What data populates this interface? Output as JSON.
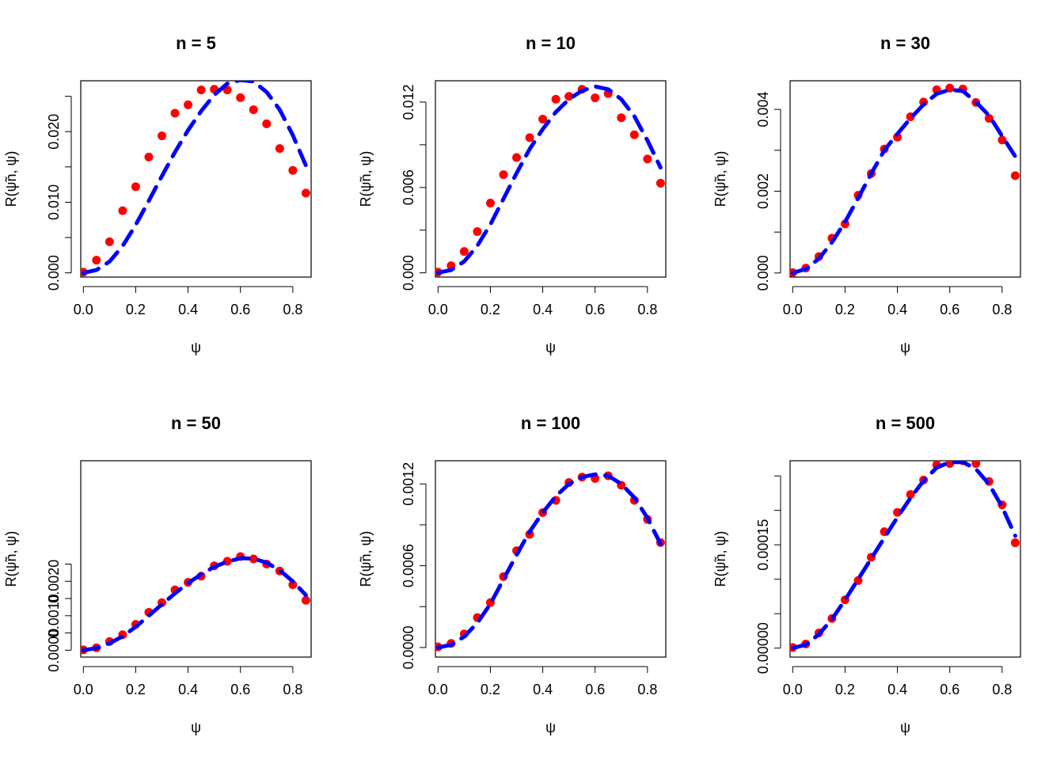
{
  "chart_data": [
    {
      "type": "scatter",
      "title": "n =  5",
      "xlabel": "ψ",
      "ylabel": "R(ψ̃n, ψ)",
      "xlim": [
        -0.01,
        0.87
      ],
      "ylim": [
        -0.0006,
        0.0272
      ],
      "xticks": [
        "0.0",
        "0.2",
        "0.4",
        "0.6",
        "0.8"
      ],
      "xtick_values": [
        0,
        0.2,
        0.4,
        0.6,
        0.8
      ],
      "yticks": [
        "0.000",
        "0.010",
        "0.020"
      ],
      "ytick_values": [
        0,
        0.005,
        0.01,
        0.015,
        0.02,
        0.025
      ],
      "ytick_labeled": [
        true,
        false,
        true,
        false,
        true,
        false
      ],
      "series": [
        {
          "style": "points",
          "color": "#ff0000",
          "x": [
            0,
            0.05,
            0.1,
            0.15,
            0.2,
            0.25,
            0.3,
            0.35,
            0.4,
            0.45,
            0.5,
            0.55,
            0.6,
            0.65,
            0.7,
            0.75,
            0.8,
            0.85
          ],
          "y": [
            0.0001,
            0.0018,
            0.0044,
            0.0088,
            0.0122,
            0.0164,
            0.0194,
            0.0226,
            0.0238,
            0.0259,
            0.026,
            0.0259,
            0.0248,
            0.0231,
            0.0211,
            0.0176,
            0.0145,
            0.0113
          ]
        },
        {
          "style": "dashed",
          "color": "#0000ff",
          "x": [
            0,
            0.05,
            0.1,
            0.15,
            0.2,
            0.25,
            0.3,
            0.35,
            0.4,
            0.45,
            0.5,
            0.55,
            0.6,
            0.65,
            0.7,
            0.75,
            0.8,
            0.85
          ],
          "y": [
            0,
            0.0004,
            0.0016,
            0.0038,
            0.0068,
            0.0102,
            0.0137,
            0.0171,
            0.0202,
            0.0229,
            0.0252,
            0.0268,
            0.0273,
            0.0271,
            0.0256,
            0.0231,
            0.0195,
            0.0152
          ]
        }
      ]
    },
    {
      "type": "scatter",
      "title": "n =  10",
      "xlabel": "ψ",
      "ylabel": "R(ψ̃n, ψ)",
      "xlim": [
        -0.01,
        0.87
      ],
      "ylim": [
        -0.0003,
        0.0135
      ],
      "xticks": [
        "0.0",
        "0.2",
        "0.4",
        "0.6",
        "0.8"
      ],
      "xtick_values": [
        0,
        0.2,
        0.4,
        0.6,
        0.8
      ],
      "yticks": [
        "0.000",
        "0.006",
        "0.012"
      ],
      "ytick_values": [
        0,
        0.003,
        0.006,
        0.009,
        0.012
      ],
      "ytick_labeled": [
        true,
        false,
        true,
        false,
        true
      ],
      "series": [
        {
          "style": "points",
          "color": "#ff0000",
          "x": [
            0,
            0.05,
            0.1,
            0.15,
            0.2,
            0.25,
            0.3,
            0.35,
            0.4,
            0.45,
            0.5,
            0.55,
            0.6,
            0.65,
            0.7,
            0.75,
            0.8,
            0.85
          ],
          "y": [
            5e-05,
            0.0005,
            0.0015,
            0.0029,
            0.0049,
            0.0069,
            0.0081,
            0.0095,
            0.0108,
            0.0122,
            0.0124,
            0.0129,
            0.0123,
            0.0126,
            0.0109,
            0.0097,
            0.008,
            0.0063
          ]
        },
        {
          "style": "dashed",
          "color": "#0000ff",
          "x": [
            0,
            0.05,
            0.1,
            0.15,
            0.2,
            0.25,
            0.3,
            0.35,
            0.4,
            0.45,
            0.5,
            0.55,
            0.6,
            0.65,
            0.7,
            0.75,
            0.8,
            0.85
          ],
          "y": [
            0,
            0.0002,
            0.0008,
            0.0019,
            0.0034,
            0.0052,
            0.007,
            0.0087,
            0.0101,
            0.0113,
            0.0122,
            0.0128,
            0.0131,
            0.0129,
            0.0122,
            0.011,
            0.0093,
            0.0074
          ]
        }
      ]
    },
    {
      "type": "scatter",
      "title": "n =  30",
      "xlabel": "ψ",
      "ylabel": "R(ψ̃n, ψ)",
      "xlim": [
        -0.01,
        0.87
      ],
      "ylim": [
        -0.0001,
        0.0047
      ],
      "xticks": [
        "0.0",
        "0.2",
        "0.4",
        "0.6",
        "0.8"
      ],
      "xtick_values": [
        0,
        0.2,
        0.4,
        0.6,
        0.8
      ],
      "yticks": [
        "0.000",
        "0.002",
        "0.004"
      ],
      "ytick_values": [
        0,
        0.001,
        0.002,
        0.003,
        0.004
      ],
      "ytick_labeled": [
        true,
        false,
        true,
        false,
        true
      ],
      "series": [
        {
          "style": "points",
          "color": "#ff0000",
          "x": [
            0,
            0.05,
            0.1,
            0.15,
            0.2,
            0.25,
            0.3,
            0.35,
            0.4,
            0.45,
            0.5,
            0.55,
            0.6,
            0.65,
            0.7,
            0.75,
            0.8,
            0.85
          ],
          "y": [
            1e-05,
            0.00012,
            0.0004,
            0.00085,
            0.0012,
            0.0019,
            0.00243,
            0.00303,
            0.00332,
            0.00382,
            0.00418,
            0.00448,
            0.00452,
            0.0045,
            0.00417,
            0.00378,
            0.00325,
            0.00238
          ]
        },
        {
          "style": "dashed",
          "color": "#0000ff",
          "x": [
            0,
            0.05,
            0.1,
            0.15,
            0.2,
            0.25,
            0.3,
            0.35,
            0.4,
            0.45,
            0.5,
            0.55,
            0.6,
            0.65,
            0.7,
            0.75,
            0.8,
            0.85
          ],
          "y": [
            0,
            0.0001,
            0.00035,
            0.00075,
            0.00125,
            0.00183,
            0.00243,
            0.003,
            0.0034,
            0.00378,
            0.00412,
            0.00438,
            0.00448,
            0.00445,
            0.00418,
            0.00385,
            0.00335,
            0.00285
          ]
        }
      ]
    },
    {
      "type": "scatter",
      "title": "n =  50",
      "xlabel": "ψ",
      "ylabel": "R(ψ̃n, ψ)",
      "xlim": [
        -0.01,
        0.87
      ],
      "ylim": [
        -0.0002,
        0.0055
      ],
      "xticks": [
        "0.0",
        "0.2",
        "0.4",
        "0.6",
        "0.8"
      ],
      "xtick_values": [
        0,
        0.2,
        0.4,
        0.6,
        0.8
      ],
      "yticks": [
        "0.0000",
        "0.0010",
        "0.0020"
      ],
      "ytick_values": [
        0,
        0.0005,
        0.001,
        0.0015,
        0.002,
        0.0025
      ],
      "ytick_labeled": [
        true,
        false,
        true,
        false,
        true,
        false
      ],
      "series": [
        {
          "style": "points",
          "color": "#ff0000",
          "x": [
            0,
            0.05,
            0.1,
            0.15,
            0.2,
            0.25,
            0.3,
            0.35,
            0.4,
            0.45,
            0.5,
            0.55,
            0.6,
            0.65,
            0.7,
            0.75,
            0.8,
            0.85
          ],
          "y": [
            1e-05,
            7e-05,
            0.00025,
            0.00045,
            0.00075,
            0.0011,
            0.00138,
            0.00175,
            0.00197,
            0.00215,
            0.00245,
            0.00258,
            0.00272,
            0.00265,
            0.0025,
            0.0023,
            0.0019,
            0.00145
          ]
        },
        {
          "style": "dashed",
          "color": "#0000ff",
          "x": [
            0,
            0.05,
            0.1,
            0.15,
            0.2,
            0.25,
            0.3,
            0.35,
            0.4,
            0.45,
            0.5,
            0.55,
            0.6,
            0.65,
            0.7,
            0.75,
            0.8,
            0.85
          ],
          "y": [
            0,
            6e-05,
            0.0002,
            0.0004,
            0.00068,
            0.001,
            0.00133,
            0.00165,
            0.00195,
            0.0022,
            0.00242,
            0.00257,
            0.00267,
            0.00266,
            0.00254,
            0.00232,
            0.002,
            0.0016
          ]
        }
      ]
    },
    {
      "type": "scatter",
      "title": "n =  100",
      "xlabel": "ψ",
      "ylabel": "R(ψ̃n, ψ)",
      "xlim": [
        -0.01,
        0.87
      ],
      "ylim": [
        -7e-05,
        0.00137
      ],
      "xticks": [
        "0.0",
        "0.2",
        "0.4",
        "0.6",
        "0.8"
      ],
      "xtick_values": [
        0,
        0.2,
        0.4,
        0.6,
        0.8
      ],
      "yticks": [
        "0.0000",
        "0.0006",
        "0.0012"
      ],
      "ytick_values": [
        0,
        0.0003,
        0.0006,
        0.0009,
        0.0012
      ],
      "ytick_labeled": [
        true,
        false,
        true,
        false,
        true
      ],
      "series": [
        {
          "style": "points",
          "color": "#ff0000",
          "x": [
            0,
            0.05,
            0.1,
            0.15,
            0.2,
            0.25,
            0.3,
            0.35,
            0.4,
            0.45,
            0.5,
            0.55,
            0.6,
            0.65,
            0.7,
            0.75,
            0.8,
            0.85
          ],
          "y": [
            5e-06,
            3e-05,
            0.0001,
            0.00022,
            0.00033,
            0.00052,
            0.00071,
            0.00083,
            0.00099,
            0.00108,
            0.00121,
            0.00125,
            0.00124,
            0.00126,
            0.00119,
            0.00108,
            0.00094,
            0.00077
          ]
        },
        {
          "style": "dashed",
          "color": "#0000ff",
          "x": [
            0,
            0.05,
            0.1,
            0.15,
            0.2,
            0.25,
            0.3,
            0.35,
            0.4,
            0.45,
            0.5,
            0.55,
            0.6,
            0.65,
            0.7,
            0.75,
            0.8,
            0.85
          ],
          "y": [
            0,
            2e-05,
            8e-05,
            0.00018,
            0.00032,
            0.0005,
            0.00068,
            0.00085,
            0.00099,
            0.00111,
            0.0012,
            0.00125,
            0.00127,
            0.00126,
            0.0012,
            0.0011,
            0.00095,
            0.00076
          ]
        }
      ]
    },
    {
      "type": "scatter",
      "title": "n =  500",
      "xlabel": "ψ",
      "ylabel": "R(ψ̃n, ψ)",
      "xlim": [
        -0.01,
        0.87
      ],
      "ylim": [
        -1.3e-05,
        0.000272
      ],
      "xticks": [
        "0.0",
        "0.2",
        "0.4",
        "0.6",
        "0.8"
      ],
      "xtick_values": [
        0,
        0.2,
        0.4,
        0.6,
        0.8
      ],
      "yticks": [
        "0.00000",
        "0.00015"
      ],
      "ytick_values": [
        0,
        5e-05,
        0.0001,
        0.00015,
        0.0002,
        0.00025
      ],
      "ytick_labeled": [
        true,
        false,
        false,
        true,
        false,
        false
      ],
      "series": [
        {
          "style": "points",
          "color": "#ff0000",
          "x": [
            0,
            0.05,
            0.1,
            0.15,
            0.2,
            0.25,
            0.3,
            0.35,
            0.4,
            0.45,
            0.5,
            0.55,
            0.6,
            0.65,
            0.7,
            0.75,
            0.8,
            0.85
          ],
          "y": [
            1e-06,
            6e-06,
            2.2e-05,
            4.3e-05,
            7e-05,
            9.8e-05,
            0.000132,
            0.000169,
            0.000197,
            0.000223,
            0.000244,
            0.000266,
            0.000268,
            0.000272,
            0.000268,
            0.000242,
            0.000208,
            0.000153
          ]
        },
        {
          "style": "dashed",
          "color": "#0000ff",
          "x": [
            0,
            0.05,
            0.1,
            0.15,
            0.2,
            0.25,
            0.3,
            0.35,
            0.4,
            0.45,
            0.5,
            0.55,
            0.6,
            0.65,
            0.7,
            0.75,
            0.8,
            0.85
          ],
          "y": [
            0,
            5e-06,
            2e-05,
            4.2e-05,
            7e-05,
            0.0001,
            0.00013,
            0.00016,
            0.00019,
            0.000218,
            0.000243,
            0.000262,
            0.00027,
            0.00027,
            0.00026,
            0.000238,
            0.000205,
            0.000163
          ]
        }
      ]
    }
  ]
}
